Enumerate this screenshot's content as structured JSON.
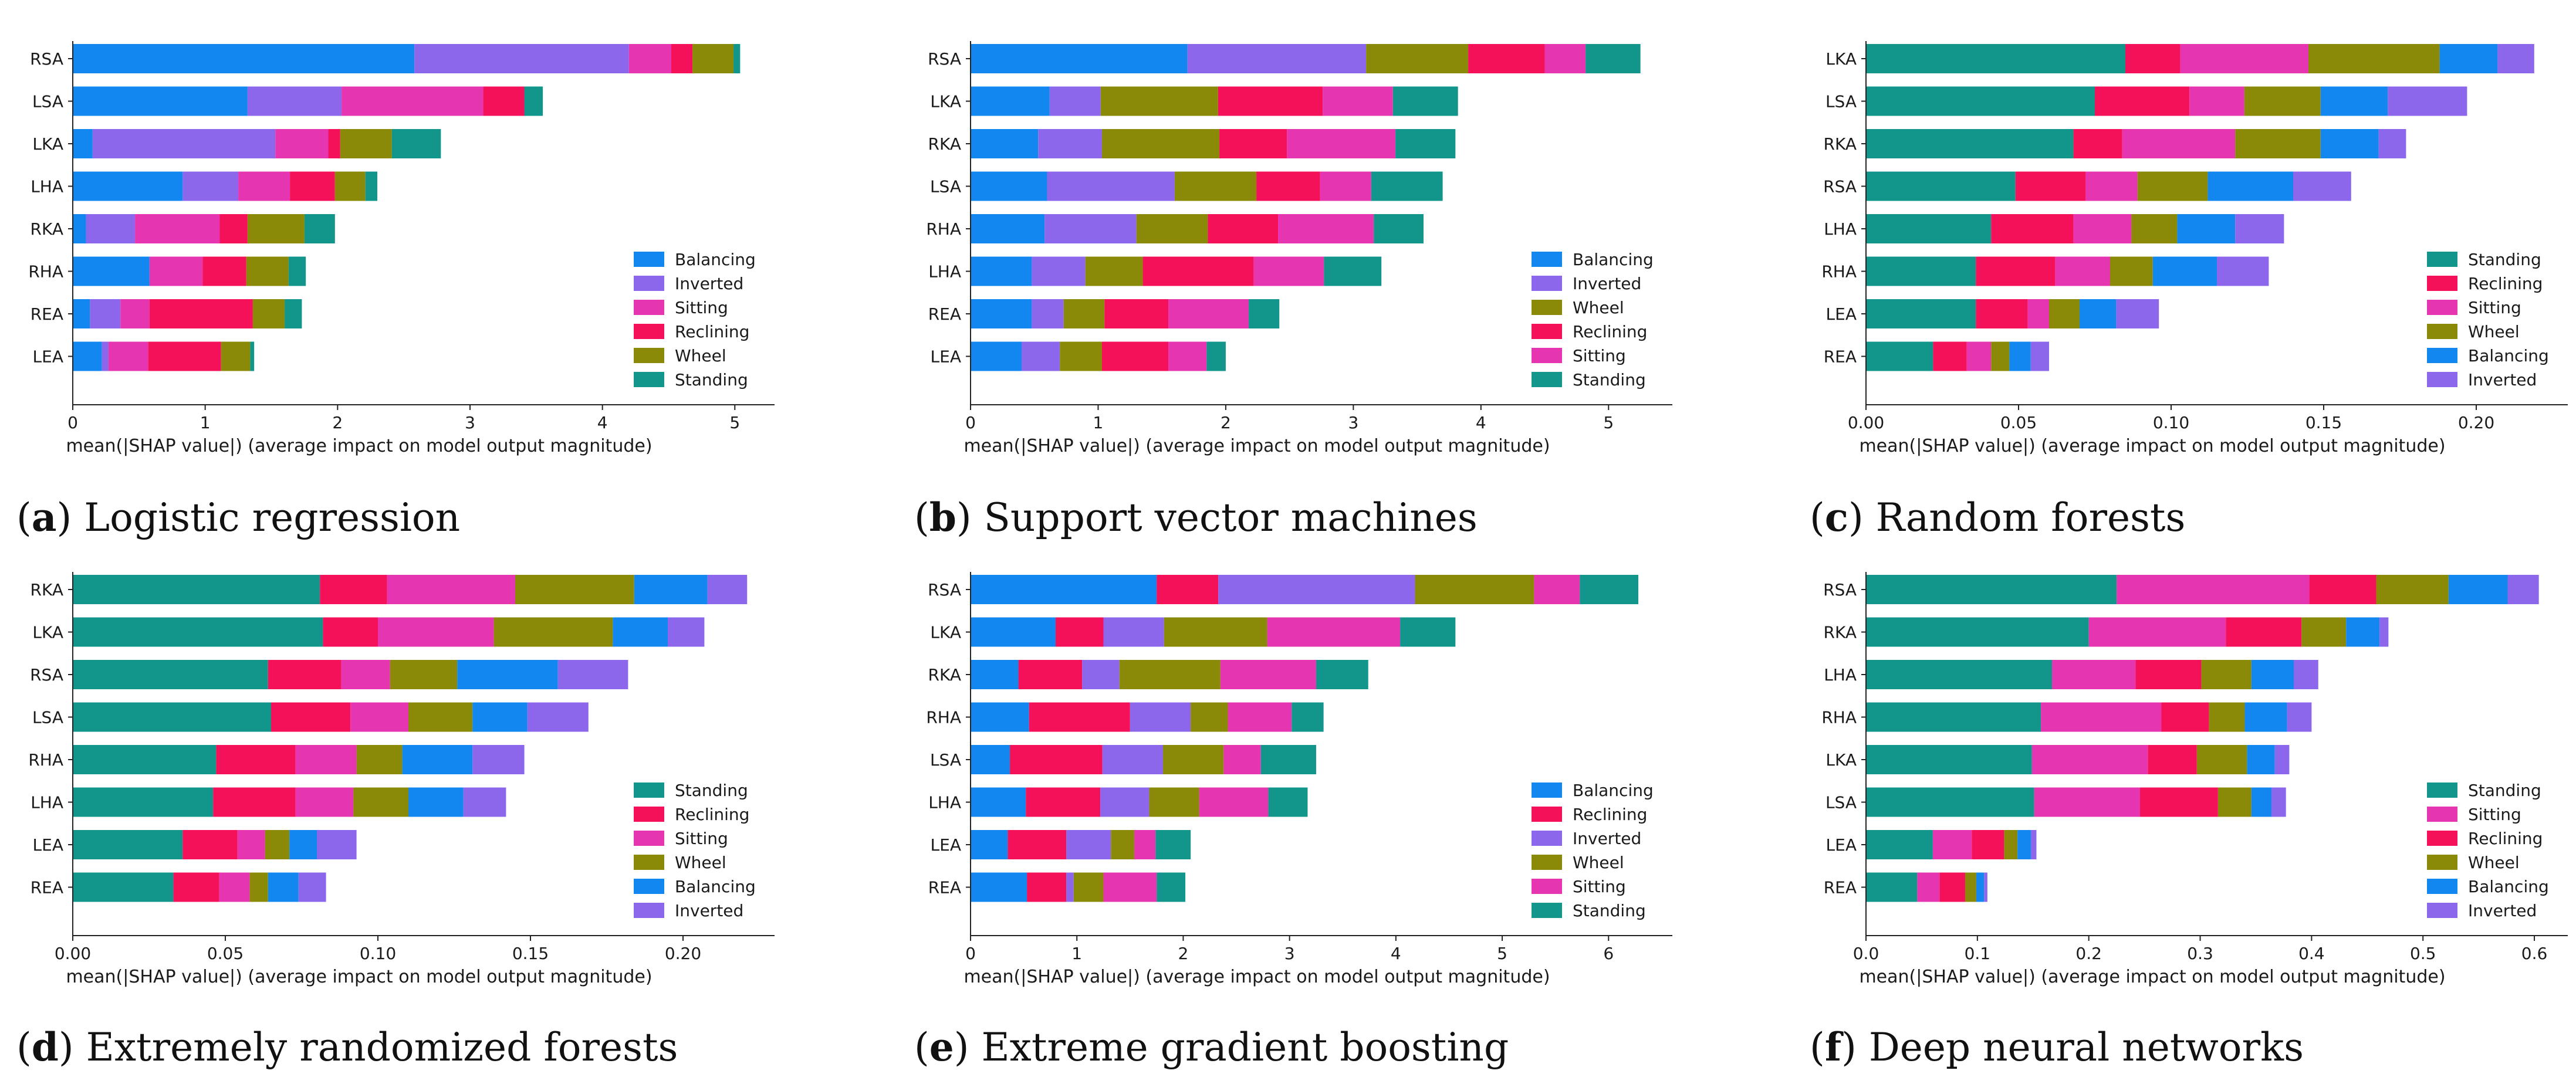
{
  "colors": {
    "Balancing": "#1287f0",
    "Inverted": "#8c67ec",
    "Sitting": "#e635b0",
    "Reclining": "#f5105a",
    "Wheel": "#8a8a08",
    "Standing": "#12968c",
    "Reclining_alt": "#8c67ec",
    "axis": "#222222"
  },
  "chart_data": [
    {
      "type": "bar",
      "orientation": "horizontal",
      "stacked": true,
      "panel": "a",
      "caption_letter": "a",
      "caption_text": "Logistic regression",
      "xlabel": "mean(|SHAP value|) (average impact on model output magnitude)",
      "xlim": [
        0,
        5.3
      ],
      "xticks": [
        0,
        1,
        2,
        3,
        4,
        5
      ],
      "xtick_labels": [
        "0",
        "1",
        "2",
        "3",
        "4",
        "5"
      ],
      "categories": [
        "RSA",
        "LSA",
        "LKA",
        "LHA",
        "RKA",
        "RHA",
        "REA",
        "LEA"
      ],
      "series": [
        {
          "name": "Balancing",
          "values": [
            2.58,
            1.32,
            0.15,
            0.83,
            0.1,
            0.58,
            0.13,
            0.22
          ]
        },
        {
          "name": "Inverted",
          "values": [
            1.62,
            0.71,
            1.38,
            0.42,
            0.37,
            0.0,
            0.23,
            0.05
          ]
        },
        {
          "name": "Sitting",
          "values": [
            0.32,
            1.07,
            0.4,
            0.39,
            0.64,
            0.4,
            0.22,
            0.3
          ]
        },
        {
          "name": "Reclining",
          "values": [
            0.16,
            0.31,
            0.09,
            0.34,
            0.21,
            0.33,
            0.78,
            0.55
          ]
        },
        {
          "name": "Wheel",
          "values": [
            0.31,
            0.0,
            0.39,
            0.23,
            0.43,
            0.32,
            0.24,
            0.22
          ]
        },
        {
          "name": "Standing",
          "values": [
            0.05,
            0.14,
            0.37,
            0.09,
            0.23,
            0.13,
            0.13,
            0.03
          ]
        }
      ],
      "legend": [
        "Balancing",
        "Inverted",
        "Sitting",
        "Reclining",
        "Wheel",
        "Standing"
      ],
      "legend_position": "lower-right"
    },
    {
      "type": "bar",
      "orientation": "horizontal",
      "stacked": true,
      "panel": "b",
      "caption_letter": "b",
      "caption_text": "Support vector machines",
      "xlabel": "mean(|SHAP value|) (average impact on model output magnitude)",
      "xlim": [
        0,
        5.5
      ],
      "xticks": [
        0,
        1,
        2,
        3,
        4,
        5
      ],
      "xtick_labels": [
        "0",
        "1",
        "2",
        "3",
        "4",
        "5"
      ],
      "categories": [
        "RSA",
        "LKA",
        "RKA",
        "LSA",
        "RHA",
        "LHA",
        "REA",
        "LEA"
      ],
      "series": [
        {
          "name": "Balancing",
          "values": [
            1.7,
            0.62,
            0.53,
            0.6,
            0.58,
            0.48,
            0.48,
            0.4
          ]
        },
        {
          "name": "Inverted",
          "values": [
            1.4,
            0.4,
            0.5,
            1.0,
            0.72,
            0.42,
            0.25,
            0.3
          ]
        },
        {
          "name": "Wheel",
          "values": [
            0.8,
            0.92,
            0.92,
            0.64,
            0.56,
            0.45,
            0.32,
            0.33
          ]
        },
        {
          "name": "Reclining",
          "values": [
            0.6,
            0.82,
            0.53,
            0.5,
            0.55,
            0.87,
            0.5,
            0.52
          ]
        },
        {
          "name": "Sitting",
          "values": [
            0.32,
            0.55,
            0.85,
            0.4,
            0.75,
            0.55,
            0.63,
            0.3
          ]
        },
        {
          "name": "Standing",
          "values": [
            0.43,
            0.51,
            0.47,
            0.56,
            0.39,
            0.45,
            0.24,
            0.15
          ]
        }
      ],
      "legend": [
        "Balancing",
        "Inverted",
        "Wheel",
        "Reclining",
        "Sitting",
        "Standing"
      ],
      "legend_position": "lower-right"
    },
    {
      "type": "bar",
      "orientation": "horizontal",
      "stacked": true,
      "panel": "c",
      "caption_letter": "c",
      "caption_text": "Random forests",
      "xlabel": "mean(|SHAP value|) (average impact on model output magnitude)",
      "xlim": [
        0,
        0.23
      ],
      "xticks": [
        0,
        0.05,
        0.1,
        0.15,
        0.2
      ],
      "xtick_labels": [
        "0.00",
        "0.05",
        "0.10",
        "0.15",
        "0.20"
      ],
      "categories": [
        "LKA",
        "LSA",
        "RKA",
        "RSA",
        "LHA",
        "RHA",
        "LEA",
        "REA"
      ],
      "series": [
        {
          "name": "Standing",
          "values": [
            0.085,
            0.075,
            0.068,
            0.049,
            0.041,
            0.036,
            0.036,
            0.022
          ]
        },
        {
          "name": "Reclining",
          "values": [
            0.018,
            0.031,
            0.016,
            0.023,
            0.027,
            0.026,
            0.017,
            0.011
          ]
        },
        {
          "name": "Sitting",
          "values": [
            0.042,
            0.018,
            0.037,
            0.017,
            0.019,
            0.018,
            0.007,
            0.008
          ]
        },
        {
          "name": "Wheel",
          "values": [
            0.043,
            0.025,
            0.028,
            0.023,
            0.015,
            0.014,
            0.01,
            0.006
          ]
        },
        {
          "name": "Balancing",
          "values": [
            0.019,
            0.022,
            0.019,
            0.028,
            0.019,
            0.021,
            0.012,
            0.007
          ]
        },
        {
          "name": "Inverted",
          "values": [
            0.012,
            0.026,
            0.009,
            0.019,
            0.016,
            0.017,
            0.014,
            0.006
          ]
        }
      ],
      "legend": [
        "Standing",
        "Reclining",
        "Sitting",
        "Wheel",
        "Balancing",
        "Inverted"
      ],
      "legend_position": "lower-right"
    },
    {
      "type": "bar",
      "orientation": "horizontal",
      "stacked": true,
      "panel": "d",
      "caption_letter": "d",
      "caption_text": "Extremely randomized forests",
      "xlabel": "mean(|SHAP value|) (average impact on model output magnitude)",
      "xlim": [
        0,
        0.23
      ],
      "xticks": [
        0,
        0.05,
        0.1,
        0.15,
        0.2
      ],
      "xtick_labels": [
        "0.00",
        "0.05",
        "0.10",
        "0.15",
        "0.20"
      ],
      "categories": [
        "RKA",
        "LKA",
        "RSA",
        "LSA",
        "RHA",
        "LHA",
        "LEA",
        "REA"
      ],
      "series": [
        {
          "name": "Standing",
          "values": [
            0.081,
            0.082,
            0.064,
            0.065,
            0.047,
            0.046,
            0.036,
            0.033
          ]
        },
        {
          "name": "Reclining",
          "values": [
            0.022,
            0.018,
            0.024,
            0.026,
            0.026,
            0.027,
            0.018,
            0.015
          ]
        },
        {
          "name": "Sitting",
          "values": [
            0.042,
            0.038,
            0.016,
            0.019,
            0.02,
            0.019,
            0.009,
            0.01
          ]
        },
        {
          "name": "Wheel",
          "values": [
            0.039,
            0.039,
            0.022,
            0.021,
            0.015,
            0.018,
            0.008,
            0.006
          ]
        },
        {
          "name": "Balancing",
          "values": [
            0.024,
            0.018,
            0.033,
            0.018,
            0.023,
            0.018,
            0.009,
            0.01
          ]
        },
        {
          "name": "Inverted",
          "values": [
            0.013,
            0.012,
            0.023,
            0.02,
            0.017,
            0.014,
            0.013,
            0.009
          ]
        }
      ],
      "legend": [
        "Standing",
        "Reclining",
        "Sitting",
        "Wheel",
        "Balancing",
        "Inverted"
      ],
      "legend_position": "lower-right"
    },
    {
      "type": "bar",
      "orientation": "horizontal",
      "stacked": true,
      "panel": "e",
      "caption_letter": "e",
      "caption_text": "Extreme gradient boosting",
      "xlabel": "mean(|SHAP value|) (average impact on model output magnitude)",
      "xlim": [
        0,
        6.6
      ],
      "xticks": [
        0,
        1,
        2,
        3,
        4,
        5,
        6
      ],
      "xtick_labels": [
        "0",
        "1",
        "2",
        "3",
        "4",
        "5",
        "6"
      ],
      "categories": [
        "RSA",
        "LKA",
        "RKA",
        "RHA",
        "LSA",
        "LHA",
        "LEA",
        "REA"
      ],
      "series": [
        {
          "name": "Balancing",
          "values": [
            1.75,
            0.8,
            0.45,
            0.55,
            0.37,
            0.52,
            0.35,
            0.53
          ]
        },
        {
          "name": "Reclining",
          "values": [
            0.58,
            0.45,
            0.6,
            0.95,
            0.87,
            0.7,
            0.55,
            0.37
          ]
        },
        {
          "name": "Inverted",
          "values": [
            1.85,
            0.57,
            0.35,
            0.57,
            0.57,
            0.46,
            0.42,
            0.07
          ]
        },
        {
          "name": "Wheel",
          "values": [
            1.12,
            0.97,
            0.95,
            0.35,
            0.57,
            0.47,
            0.22,
            0.28
          ]
        },
        {
          "name": "Sitting",
          "values": [
            0.43,
            1.25,
            0.9,
            0.6,
            0.35,
            0.65,
            0.2,
            0.5
          ]
        },
        {
          "name": "Standing",
          "values": [
            0.55,
            0.52,
            0.49,
            0.3,
            0.52,
            0.37,
            0.33,
            0.27
          ]
        }
      ],
      "legend": [
        "Balancing",
        "Reclining",
        "Inverted",
        "Wheel",
        "Sitting",
        "Standing"
      ],
      "legend_position": "lower-right"
    },
    {
      "type": "bar",
      "orientation": "horizontal",
      "stacked": true,
      "panel": "f",
      "caption_letter": "f",
      "caption_text": "Deep neural networks",
      "xlabel": "mean(|SHAP value|) (average impact on model output magnitude)",
      "xlim": [
        0,
        0.63
      ],
      "xticks": [
        0,
        0.1,
        0.2,
        0.3,
        0.4,
        0.5,
        0.6
      ],
      "xtick_labels": [
        "0.0",
        "0.1",
        "0.2",
        "0.3",
        "0.4",
        "0.5",
        "0.6"
      ],
      "categories": [
        "RSA",
        "RKA",
        "LHA",
        "RHA",
        "LKA",
        "LSA",
        "LEA",
        "REA"
      ],
      "series": [
        {
          "name": "Standing",
          "values": [
            0.225,
            0.2,
            0.167,
            0.157,
            0.149,
            0.151,
            0.06,
            0.046
          ]
        },
        {
          "name": "Sitting",
          "values": [
            0.173,
            0.123,
            0.075,
            0.108,
            0.104,
            0.095,
            0.035,
            0.02
          ]
        },
        {
          "name": "Reclining",
          "values": [
            0.06,
            0.068,
            0.059,
            0.043,
            0.044,
            0.07,
            0.029,
            0.023
          ]
        },
        {
          "name": "Wheel",
          "values": [
            0.065,
            0.04,
            0.045,
            0.032,
            0.045,
            0.03,
            0.012,
            0.01
          ]
        },
        {
          "name": "Balancing",
          "values": [
            0.053,
            0.03,
            0.038,
            0.038,
            0.025,
            0.018,
            0.012,
            0.007
          ]
        },
        {
          "name": "Inverted",
          "values": [
            0.028,
            0.008,
            0.022,
            0.022,
            0.013,
            0.013,
            0.005,
            0.003
          ]
        }
      ],
      "legend": [
        "Standing",
        "Sitting",
        "Reclining",
        "Wheel",
        "Balancing",
        "Inverted"
      ],
      "legend_position": "lower-right"
    }
  ]
}
